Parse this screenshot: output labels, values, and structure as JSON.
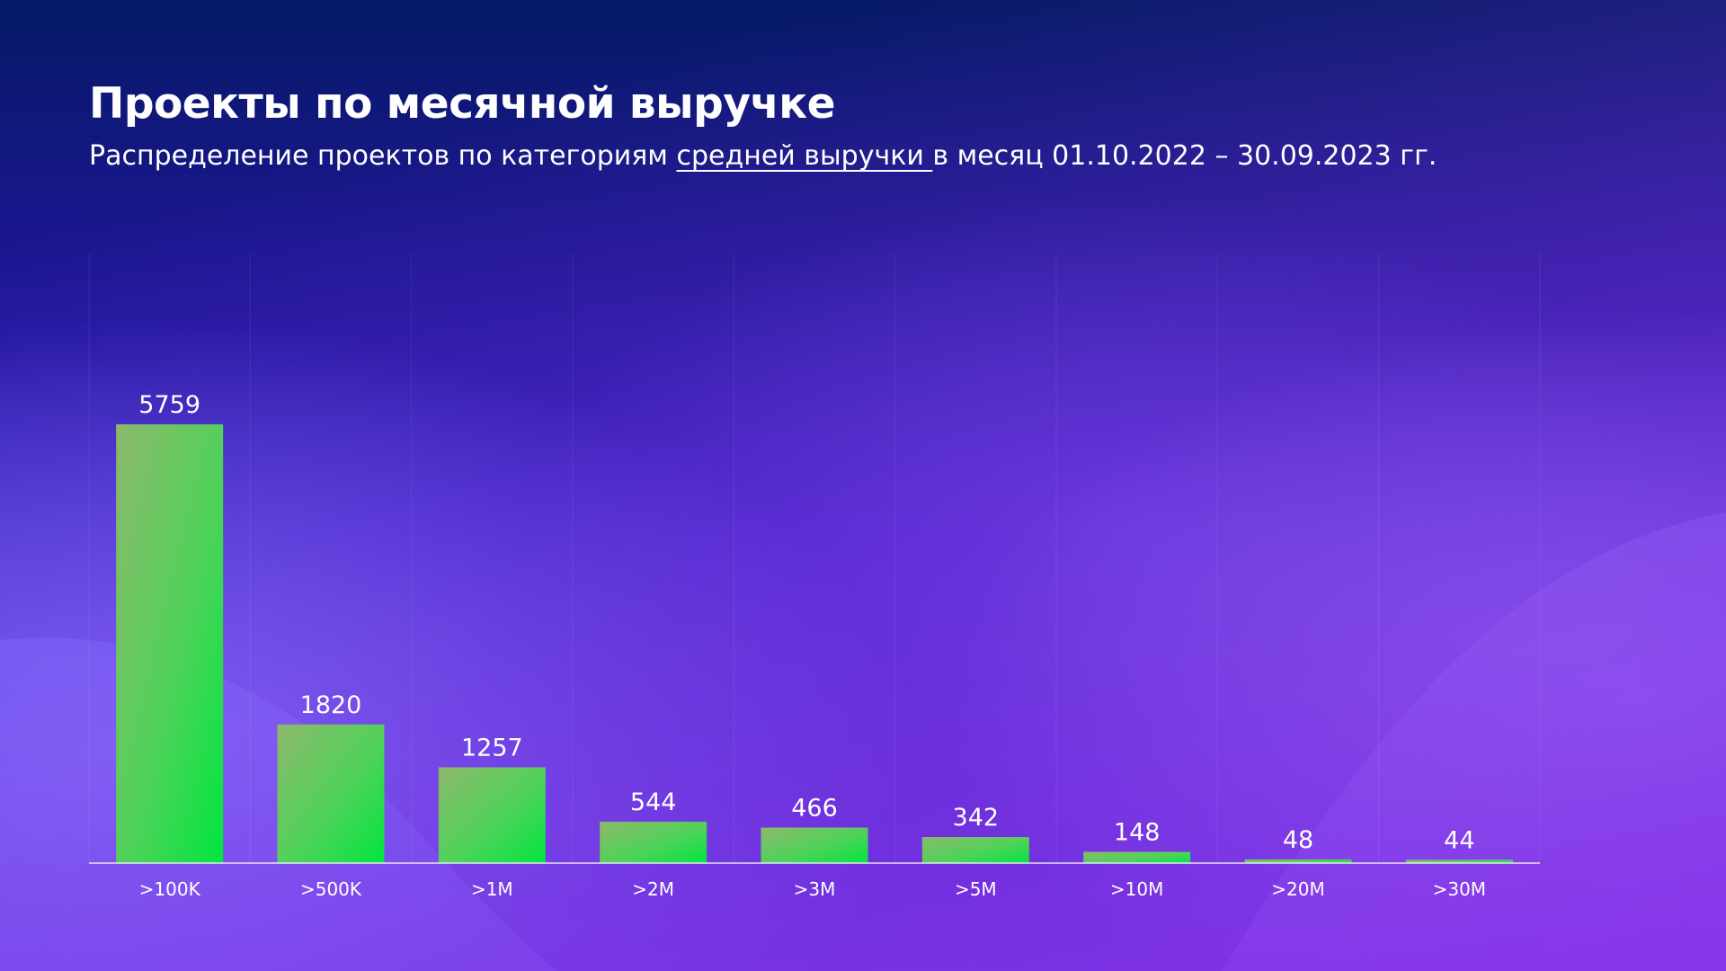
{
  "header": {
    "title": "Проекты по месячной выручке",
    "subtitle_before": "Распределение проектов по категориям ",
    "subtitle_link": "средней выручки ",
    "subtitle_after": "в месяц 01.10.2022 – 30.09.2023 гг."
  },
  "colors": {
    "bar_top": "#8db86b",
    "bar_bottom": "#00e63e",
    "background_top": "#08186a",
    "background_mid": "#2a18b6",
    "background_accent": "#7b6cff",
    "background_violet": "#8a3ee6"
  },
  "chart_data": {
    "type": "bar",
    "title": "Проекты по месячной выручке",
    "categories": [
      ">100K",
      ">500K",
      ">1M",
      ">2M",
      ">3M",
      ">5M",
      ">10M",
      ">20M",
      ">30M"
    ],
    "values": [
      5759,
      1820,
      1257,
      544,
      466,
      342,
      148,
      48,
      44
    ],
    "ylim": [
      0,
      8000
    ],
    "grid": "vertical lines between categories",
    "legend": "none"
  }
}
